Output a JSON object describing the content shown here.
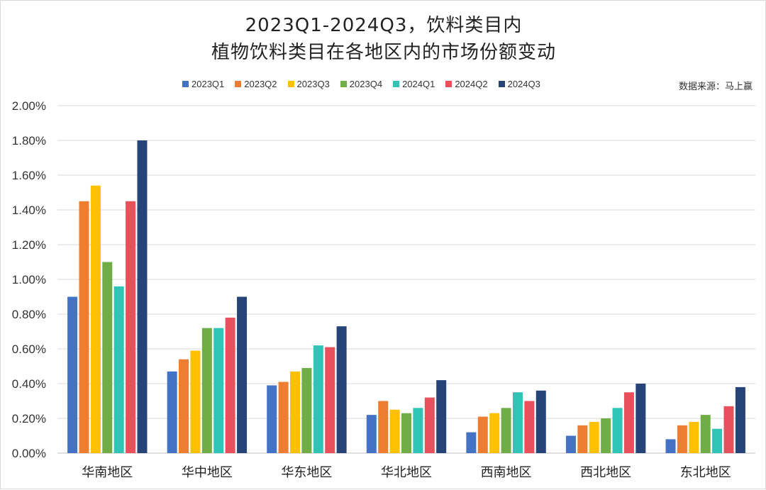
{
  "chart_data": {
    "type": "bar",
    "title_line1": "2023Q1-2024Q3，饮料类目内",
    "title_line2": "植物饮料类目在各地区内的市场份额变动",
    "source": "数据来源：马上赢",
    "categories": [
      "华南地区",
      "华中地区",
      "华东地区",
      "华北地区",
      "西南地区",
      "西北地区",
      "东北地区"
    ],
    "series": [
      {
        "name": "2023Q1",
        "color": "#4472c4",
        "values": [
          0.9,
          0.47,
          0.39,
          0.22,
          0.12,
          0.1,
          0.08
        ]
      },
      {
        "name": "2023Q2",
        "color": "#ed7d31",
        "values": [
          1.45,
          0.54,
          0.41,
          0.3,
          0.21,
          0.16,
          0.16
        ]
      },
      {
        "name": "2023Q3",
        "color": "#ffc000",
        "values": [
          1.54,
          0.59,
          0.47,
          0.25,
          0.23,
          0.18,
          0.18
        ]
      },
      {
        "name": "2023Q4",
        "color": "#70ad47",
        "values": [
          1.1,
          0.72,
          0.49,
          0.23,
          0.26,
          0.2,
          0.22
        ]
      },
      {
        "name": "2024Q1",
        "color": "#2ec4b6",
        "values": [
          0.96,
          0.72,
          0.62,
          0.26,
          0.35,
          0.26,
          0.14
        ]
      },
      {
        "name": "2024Q2",
        "color": "#e8505b",
        "values": [
          1.45,
          0.78,
          0.61,
          0.32,
          0.3,
          0.35,
          0.27
        ]
      },
      {
        "name": "2024Q3",
        "color": "#264478",
        "values": [
          1.8,
          0.9,
          0.73,
          0.42,
          0.36,
          0.4,
          0.38
        ]
      }
    ],
    "yticks": [
      "0.00%",
      "0.20%",
      "0.40%",
      "0.60%",
      "0.80%",
      "1.00%",
      "1.20%",
      "1.40%",
      "1.60%",
      "1.80%",
      "2.00%"
    ],
    "ylim": [
      0,
      2.0
    ],
    "ylabel": "",
    "xlabel": "",
    "grid": true,
    "legend_position": "top"
  }
}
